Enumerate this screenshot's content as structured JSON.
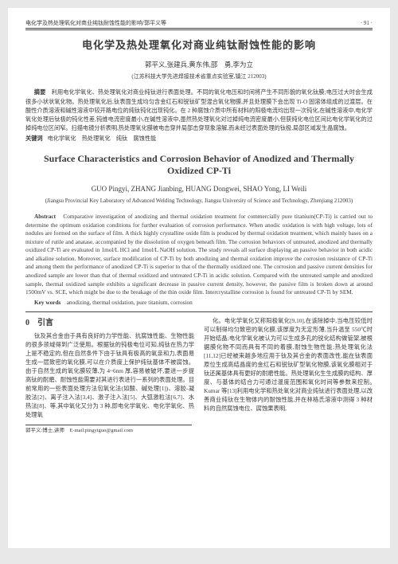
{
  "header": {
    "left": "电化学及热处理氧化对商业纯钛耐蚀性能的影响/郭平义等",
    "right": "· 91 ·"
  },
  "title_cn": "电化学及热处理氧化对商业纯钛耐蚀性能的影响",
  "authors_cn": "郭平义,张建兵,黄东伟,邵　勇,李为立",
  "affil_cn": "(江苏科技大学先进焊接技术省重点实验室,镇江 212003)",
  "abstract_cn_label": "摘要",
  "abstract_cn": "利用电化学氧化、热处理氧化对商业纯钛进行表面处理。不同的氧化电压和时间将产生不同形貌的氧化钛膜;电压过大时会生成很多小状状氧化物。热处理氧化后,钛表面生成均匀含金红石和锐钛矿型混合氧化物膜,并且处理膜下会出现 Ti-O 固溶体组成的过渡层。在酸性介质溶液和碱性溶液中较开路电位的纯钛钝化出现钝化。在 2 种腐蚀介质中所有材料的阳极电流均出现一次钝化,在碱性溶液中,电化学氧化处理后钛极的钝化性差,钝维电流密度最小,在碱性溶液中,虽然热处理氧化对过掉纯电流密度最小,但获纯化电位区间比电化学氧化的过掉纯电位区间窄。扫描电镜分析表明,热处理氧化膜被电击穿并局部击穿现象溶解,而未经过表面处理的钛极,局部区域发生晶腐蚀。",
  "kw_cn_label": "关键词",
  "kw_cn": "电化学氧化　热处理氧化　纯钛　腐蚀性能",
  "title_en": "Surface Characteristics and Corrosion Behavior of Anodized and Thermally Oxidized CP-Ti",
  "authors_en": "GUO Pingyi, ZHANG Jianbing, HUANG Dongwei, SHAO Yong, LI Weili",
  "affil_en": "(Jiangsu Provincial Key Laboratory of Advanced Welding Technology, Jiangsu University of Science and Technology, Zhenjiang 212003)",
  "abstract_en_label": "Abstract",
  "abstract_en": "Comparative investigation of anodizing and thermal oxidation treatment for commercially pure titanium(CP-Ti) is carried out to determine the optimum oxidation conditions for further evaluation of corrosion performance. When anodic oxidation is with high voltage, lots of nodules are formed on the surface of film. A thick highly crystalline oxide film is produced by thermal oxidation treatment, which mainly bases on a mixture of rutile and anatase, accompanied by the dissolution of oxygen beneath film. The corrosion behaviors of untreated, anodized and thermally oxidized CP-Ti are evaluated in 1mol/L HCl and 1mol/L NaOH solution. The study reveals all surface displaying an passive behavior in both acidic and alkaline solution. Moreover, surface modification of CP-Ti by both anodizing and thermal oxidation improve the corrosion resistance of CP-Ti and among them the performance of anodized CP-Ti is superior to that of the thermally oxidized one. The corrosion and passive current densities for anodized sample are lower than that of thermal oxidized and untreated CP-Ti in acidic solution. Compared with the untreated sample and anodized sample, thermal oxidized sample exhibits a significant decrease in passive current density, however, the passive film is broken down at around 1500mV vs. SCE, which might be due to the breakage of the thin oxide film. Intercrystalline corrosion is found for untreated CP-Ti by SEM.",
  "kw_en_label": "Key words",
  "kw_en": "anodizing, thermal oxidation, pure titanium, corrosion",
  "section0_head": "0　引言",
  "col_left": "钛及其合金由于具有良好的力学性能、抗腐蚀性能、生物性能的很多领域得到广泛使用。根据钛的钝极电位可知,纯钛在热力学上是不稳定的,但在自然条件下由于钛具有极高的氧亲和力,表面易生成一层致密的氧化膜,可以在介质度上保护纯钛基体不被腐蚀。由于自然生成的氧化膜较薄,为 4~6nm 厚,容易被破坏,要进一步提高钛的耐磨、耐蚀性能需要对其进行表进行一系列的表面处理。目前常用的一些表面处理方法包氧化法(如酸、碱处理[1])、溶胶-凝胶法[2]、离子注入法[3,4]、激子注入法[5]、大弧激粒法[6,7]、水热法[8]、等,其中氧化又分为 3 种,即电化学氧化、电化学氧化、热处理氧",
  "col_right": "化。电化学氧化又称阳极氧化[9,10],在该除掉中,当电压较低时可以制得均匀致密的氧化膜,该厚度为无定形薄,当升温至 550℃时开始结晶;电化学氧化被认为可以生成多孔的锐化结构做管架,被根据膜化物不同而具有不同的着膜,耐蚀生物性能;热处理氧化法[11,12]已经被来越多地应用于钛及其合金的表面改性,能在钛表面原位生成高结晶度的金红石和锐钛矿型氧化物膜,该氧化膜相对于钛还属基体具有更好的耐磨性能。热处理氧化生生成膜的结构、厚度、与基体的结合力可通过温度范围和氧化时间等参数来控制。　Kumar 等[13]利用电化学和热处氧化对商业纯钛进行表面处理,以改善商业纯钛在生物体内的耐蚀性能,并在林格氏溶液中测得 3 种材料的自然腐蚀电位、腐蚀果表明,",
  "footnote": "郭平义:博士,讲师　E-mail:pingyiguo@gmail.com"
}
